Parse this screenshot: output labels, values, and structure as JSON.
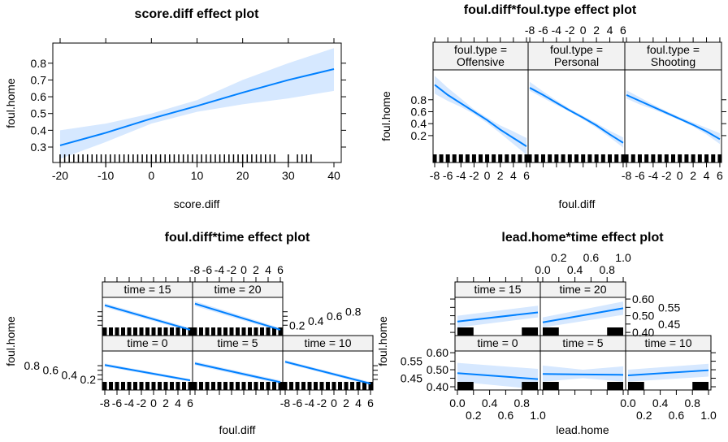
{
  "colors": {
    "line": "#0080ff",
    "band": "#d6e8ff",
    "strip": "#f2f2f2",
    "rug": "#000000"
  },
  "chart_data": [
    {
      "type": "line",
      "title": "score.diff effect plot",
      "xlabel": "score.diff",
      "ylabel": "foul.home",
      "xlim": [
        -21.6,
        41.6
      ],
      "ylim": [
        0.208,
        0.92
      ],
      "xticks": [
        -20,
        -10,
        0,
        10,
        20,
        30,
        40
      ],
      "yticks": [
        0.3,
        0.4,
        0.5,
        0.6,
        0.7,
        0.8
      ],
      "rug": [
        -20,
        -19,
        -18,
        -17,
        -16,
        -15,
        -14,
        -13,
        -12,
        -11,
        -10,
        -9,
        -8,
        -7,
        -6,
        -5,
        -4,
        -3,
        -2,
        -1,
        0,
        1,
        2,
        3,
        4,
        5,
        6,
        7,
        8,
        9,
        10,
        11,
        12,
        13,
        14,
        15,
        16,
        17,
        18,
        19,
        20,
        21,
        22,
        23,
        24,
        25,
        26,
        27,
        30,
        32,
        33,
        34,
        35
      ],
      "panels": [
        {
          "strip": "",
          "x": [
            -20,
            -10,
            0,
            10,
            20,
            30,
            40
          ],
          "fit": [
            0.31,
            0.385,
            0.47,
            0.545,
            0.625,
            0.7,
            0.765
          ],
          "lower": [
            0.23,
            0.33,
            0.44,
            0.51,
            0.555,
            0.59,
            0.635
          ],
          "upper": [
            0.4,
            0.44,
            0.5,
            0.58,
            0.7,
            0.8,
            0.89
          ]
        }
      ]
    },
    {
      "type": "line",
      "title": "foul.diff*foul.type effect plot",
      "xlabel": "foul.diff",
      "ylabel": "foul.home",
      "xlim": [
        -8.25,
        6.25
      ],
      "ylim": [
        -0.25,
        1.3
      ],
      "xticks": [
        -8,
        -6,
        -4,
        -2,
        0,
        2,
        4,
        6
      ],
      "yticks": [
        0.2,
        0.4,
        0.6,
        0.8
      ],
      "rug": [
        -8,
        -7,
        -6,
        -5,
        -4,
        -3,
        -2,
        -1,
        0,
        1,
        2,
        3,
        4,
        5,
        6
      ],
      "panels": [
        {
          "strip": "foul.type = Offensive",
          "x": [
            -8,
            -6,
            -4,
            -2,
            0,
            2,
            4,
            6
          ],
          "fit": [
            1.05,
            0.88,
            0.74,
            0.6,
            0.46,
            0.3,
            0.16,
            0.02
          ],
          "lower": [
            0.9,
            0.78,
            0.68,
            0.56,
            0.41,
            0.24,
            0.06,
            -0.12
          ],
          "upper": [
            1.2,
            1.0,
            0.82,
            0.64,
            0.5,
            0.37,
            0.27,
            0.16
          ]
        },
        {
          "strip": "foul.type = Personal",
          "x": [
            -8,
            -6,
            -4,
            -2,
            0,
            2,
            4,
            6
          ],
          "fit": [
            1.0,
            0.88,
            0.75,
            0.62,
            0.5,
            0.37,
            0.22,
            0.08
          ],
          "lower": [
            0.95,
            0.83,
            0.71,
            0.6,
            0.47,
            0.33,
            0.17,
            0.0
          ],
          "upper": [
            1.1,
            0.94,
            0.79,
            0.65,
            0.53,
            0.41,
            0.28,
            0.17
          ]
        },
        {
          "strip": "foul.type = Shooting",
          "x": [
            -8,
            -6,
            -4,
            -2,
            0,
            2,
            4,
            6
          ],
          "fit": [
            0.88,
            0.78,
            0.68,
            0.58,
            0.48,
            0.38,
            0.27,
            0.14
          ],
          "lower": [
            0.82,
            0.72,
            0.64,
            0.55,
            0.46,
            0.35,
            0.22,
            0.06
          ],
          "upper": [
            0.96,
            0.84,
            0.72,
            0.61,
            0.51,
            0.42,
            0.33,
            0.24
          ]
        }
      ]
    },
    {
      "type": "line",
      "title": "foul.diff*time effect plot",
      "xlabel": "foul.diff",
      "ylabel": "foul.home",
      "xlim": [
        -8.4,
        6.4
      ],
      "ylim": [
        -0.26,
        1.44
      ],
      "xticks": [
        -8,
        -6,
        -4,
        -2,
        0,
        2,
        4,
        6
      ],
      "yticks": [
        0.2,
        0.4,
        0.6,
        0.8
      ],
      "rug": [
        -8,
        -7,
        -6,
        -5,
        -4,
        -3,
        -2,
        -1,
        0,
        1,
        2,
        3,
        4,
        5,
        6
      ],
      "panels": [
        {
          "strip": "time = 0",
          "x": [
            -8,
            6
          ],
          "fit": [
            0.83,
            0.16
          ],
          "lower": [
            0.76,
            0.1
          ],
          "upper": [
            0.9,
            0.22
          ]
        },
        {
          "strip": "time = 5",
          "x": [
            -8,
            6
          ],
          "fit": [
            0.9,
            0.08
          ],
          "lower": [
            0.82,
            0.0
          ],
          "upper": [
            0.98,
            0.16
          ]
        },
        {
          "strip": "time = 10",
          "x": [
            -8,
            6
          ],
          "fit": [
            0.97,
            0.02
          ],
          "lower": [
            0.9,
            -0.05
          ],
          "upper": [
            1.04,
            0.09
          ]
        },
        {
          "strip": "time = 15",
          "x": [
            -8,
            6
          ],
          "fit": [
            1.09,
            0.0
          ],
          "lower": [
            1.0,
            -0.08
          ],
          "upper": [
            1.18,
            0.08
          ]
        },
        {
          "strip": "time = 20",
          "x": [
            -8,
            6
          ],
          "fit": [
            1.16,
            0.0
          ],
          "lower": [
            1.05,
            -0.08
          ],
          "upper": [
            1.27,
            0.08
          ]
        }
      ]
    },
    {
      "type": "line",
      "title": "lead.home*time effect plot",
      "xlabel": "lead.home",
      "ylabel": "foul.home",
      "xlim": [
        -0.03,
        1.03
      ],
      "ylim": [
        0.381,
        0.61
      ],
      "xticks": [
        0.0,
        0.2,
        0.4,
        0.6,
        0.8,
        1.0
      ],
      "xticklabels": [
        "0.0",
        "0.2",
        "0.4",
        "0.6",
        "0.8",
        "1.0"
      ],
      "yticks": [
        0.4,
        0.45,
        0.5,
        0.55,
        0.6
      ],
      "yticklabels": [
        "0.40",
        "0.45",
        "0.50",
        "0.55",
        "0.60"
      ],
      "rug": [
        0,
        1
      ],
      "panels": [
        {
          "strip": "time = 0",
          "x": [
            0,
            1
          ],
          "fit": [
            0.48,
            0.445
          ],
          "lower": [
            0.43,
            0.385
          ],
          "upper": [
            0.54,
            0.505
          ]
        },
        {
          "strip": "time = 5",
          "x": [
            0,
            0.5,
            1
          ],
          "fit": [
            0.475,
            0.472,
            0.47
          ],
          "lower": [
            0.43,
            0.45,
            0.43
          ],
          "upper": [
            0.525,
            0.5,
            0.52
          ]
        },
        {
          "strip": "time = 10",
          "x": [
            0,
            1
          ],
          "fit": [
            0.467,
            0.497
          ],
          "lower": [
            0.43,
            0.46
          ],
          "upper": [
            0.5,
            0.535
          ]
        },
        {
          "strip": "time = 15",
          "x": [
            0,
            1
          ],
          "fit": [
            0.465,
            0.52
          ],
          "lower": [
            0.43,
            0.49
          ],
          "upper": [
            0.5,
            0.56
          ]
        },
        {
          "strip": "time = 20",
          "x": [
            0,
            1
          ],
          "fit": [
            0.46,
            0.545
          ],
          "lower": [
            0.43,
            0.505
          ],
          "upper": [
            0.49,
            0.585
          ]
        }
      ]
    }
  ]
}
